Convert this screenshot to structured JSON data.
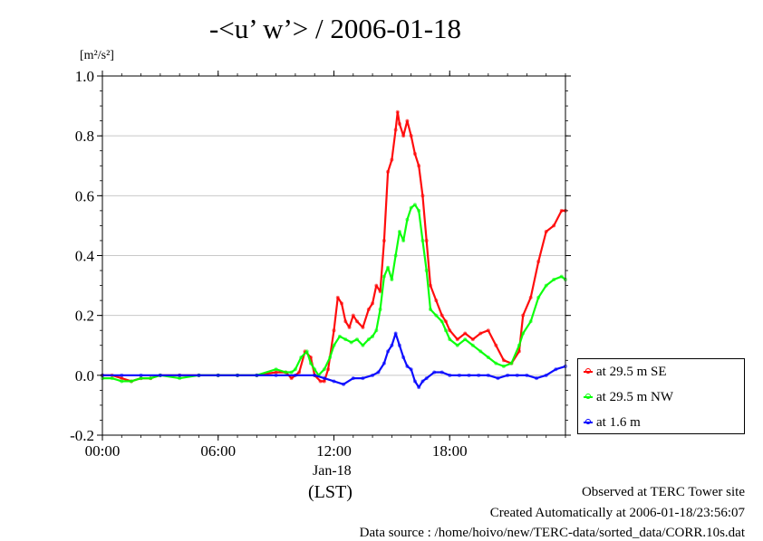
{
  "title": "-<u’ w’> / 2006-01-18",
  "units_label": "[m²/s²]",
  "xlabel_date": "Jan-18",
  "xlabel_tz": "(LST)",
  "footer": {
    "line1": "Observed at TERC Tower site",
    "line2": "Created Automatically at 2006-01-18/23:56:07",
    "line3": "Data source : /home/hoivo/new/TERC-data/sorted_data/CORR.10s.dat"
  },
  "chart_data": {
    "type": "line",
    "title": "-<u’ w’> / 2006-01-18",
    "ylabel": "[m²/s²]",
    "xlabel": "Jan-18 (LST)",
    "xlim": [
      0,
      24
    ],
    "ylim": [
      -0.2,
      1.0
    ],
    "x_ticks": [
      {
        "value": 0,
        "label": "00:00"
      },
      {
        "value": 6,
        "label": "06:00"
      },
      {
        "value": 12,
        "label": "12:00"
      },
      {
        "value": 18,
        "label": "18:00"
      }
    ],
    "y_ticks": [
      {
        "value": -0.2,
        "label": "-0.2"
      },
      {
        "value": 0.0,
        "label": "0.0"
      },
      {
        "value": 0.2,
        "label": "0.2"
      },
      {
        "value": 0.4,
        "label": "0.4"
      },
      {
        "value": 0.6,
        "label": "0.6"
      },
      {
        "value": 0.8,
        "label": "0.8"
      },
      {
        "value": 1.0,
        "label": "1.0"
      }
    ],
    "grid": "horizontal",
    "legend_position": "right-bottom-outside",
    "series": [
      {
        "name": "at 29.5 m SE",
        "color": "#ff0000",
        "points": [
          [
            0,
            0
          ],
          [
            0.5,
            0.0
          ],
          [
            1,
            -0.01
          ],
          [
            1.5,
            -0.02
          ],
          [
            2,
            -0.01
          ],
          [
            2.5,
            -0.01
          ],
          [
            3,
            0
          ],
          [
            4,
            0
          ],
          [
            5,
            0
          ],
          [
            6,
            0
          ],
          [
            7,
            0
          ],
          [
            8,
            0
          ],
          [
            9,
            0.01
          ],
          [
            9.5,
            0.01
          ],
          [
            9.8,
            -0.01
          ],
          [
            10.2,
            0.01
          ],
          [
            10.5,
            0.08
          ],
          [
            10.8,
            0.06
          ],
          [
            11.0,
            0.0
          ],
          [
            11.3,
            -0.02
          ],
          [
            11.5,
            -0.02
          ],
          [
            11.7,
            0.02
          ],
          [
            12.0,
            0.15
          ],
          [
            12.2,
            0.26
          ],
          [
            12.4,
            0.24
          ],
          [
            12.6,
            0.18
          ],
          [
            12.8,
            0.16
          ],
          [
            13.0,
            0.2
          ],
          [
            13.2,
            0.18
          ],
          [
            13.5,
            0.16
          ],
          [
            13.8,
            0.22
          ],
          [
            14.0,
            0.24
          ],
          [
            14.2,
            0.3
          ],
          [
            14.4,
            0.28
          ],
          [
            14.6,
            0.45
          ],
          [
            14.8,
            0.68
          ],
          [
            15.0,
            0.72
          ],
          [
            15.2,
            0.82
          ],
          [
            15.3,
            0.88
          ],
          [
            15.4,
            0.84
          ],
          [
            15.6,
            0.8
          ],
          [
            15.8,
            0.85
          ],
          [
            16.0,
            0.8
          ],
          [
            16.2,
            0.74
          ],
          [
            16.4,
            0.7
          ],
          [
            16.6,
            0.6
          ],
          [
            16.8,
            0.45
          ],
          [
            17.0,
            0.3
          ],
          [
            17.3,
            0.25
          ],
          [
            17.6,
            0.2
          ],
          [
            17.8,
            0.18
          ],
          [
            18.0,
            0.15
          ],
          [
            18.4,
            0.12
          ],
          [
            18.8,
            0.14
          ],
          [
            19.2,
            0.12
          ],
          [
            19.6,
            0.14
          ],
          [
            20.0,
            0.15
          ],
          [
            20.4,
            0.1
          ],
          [
            20.8,
            0.05
          ],
          [
            21.2,
            0.04
          ],
          [
            21.6,
            0.08
          ],
          [
            21.8,
            0.2
          ],
          [
            22.2,
            0.26
          ],
          [
            22.6,
            0.38
          ],
          [
            23.0,
            0.48
          ],
          [
            23.4,
            0.5
          ],
          [
            23.8,
            0.55
          ],
          [
            24.0,
            0.55
          ]
        ]
      },
      {
        "name": "at 29.5 m NW",
        "color": "#00ff00",
        "points": [
          [
            0,
            -0.01
          ],
          [
            0.5,
            -0.01
          ],
          [
            1,
            -0.02
          ],
          [
            1.5,
            -0.02
          ],
          [
            2,
            -0.01
          ],
          [
            2.5,
            -0.01
          ],
          [
            3,
            0
          ],
          [
            4,
            -0.01
          ],
          [
            5,
            0
          ],
          [
            6,
            0
          ],
          [
            7,
            0
          ],
          [
            8,
            0
          ],
          [
            9,
            0.02
          ],
          [
            9.5,
            0.01
          ],
          [
            9.8,
            0.01
          ],
          [
            10.0,
            0.02
          ],
          [
            10.3,
            0.06
          ],
          [
            10.6,
            0.08
          ],
          [
            10.8,
            0.04
          ],
          [
            11.0,
            0.02
          ],
          [
            11.2,
            0.0
          ],
          [
            11.5,
            0.02
          ],
          [
            11.8,
            0.06
          ],
          [
            12.0,
            0.1
          ],
          [
            12.3,
            0.13
          ],
          [
            12.6,
            0.12
          ],
          [
            12.9,
            0.11
          ],
          [
            13.2,
            0.12
          ],
          [
            13.5,
            0.1
          ],
          [
            13.8,
            0.12
          ],
          [
            14.0,
            0.13
          ],
          [
            14.2,
            0.15
          ],
          [
            14.4,
            0.22
          ],
          [
            14.6,
            0.33
          ],
          [
            14.8,
            0.36
          ],
          [
            15.0,
            0.32
          ],
          [
            15.2,
            0.4
          ],
          [
            15.4,
            0.48
          ],
          [
            15.6,
            0.45
          ],
          [
            15.8,
            0.52
          ],
          [
            16.0,
            0.56
          ],
          [
            16.2,
            0.57
          ],
          [
            16.4,
            0.55
          ],
          [
            16.6,
            0.45
          ],
          [
            16.8,
            0.35
          ],
          [
            17.0,
            0.22
          ],
          [
            17.3,
            0.2
          ],
          [
            17.6,
            0.18
          ],
          [
            17.8,
            0.15
          ],
          [
            18.0,
            0.12
          ],
          [
            18.4,
            0.1
          ],
          [
            18.8,
            0.12
          ],
          [
            19.2,
            0.1
          ],
          [
            19.6,
            0.08
          ],
          [
            20.0,
            0.06
          ],
          [
            20.4,
            0.04
          ],
          [
            20.8,
            0.03
          ],
          [
            21.2,
            0.04
          ],
          [
            21.6,
            0.1
          ],
          [
            21.8,
            0.14
          ],
          [
            22.2,
            0.18
          ],
          [
            22.6,
            0.26
          ],
          [
            23.0,
            0.3
          ],
          [
            23.4,
            0.32
          ],
          [
            23.8,
            0.33
          ],
          [
            24.0,
            0.32
          ]
        ]
      },
      {
        "name": "at 1.6 m",
        "color": "#0000ff",
        "points": [
          [
            0,
            0
          ],
          [
            1,
            0
          ],
          [
            2,
            0
          ],
          [
            3,
            0
          ],
          [
            4,
            0
          ],
          [
            5,
            0
          ],
          [
            6,
            0
          ],
          [
            7,
            0
          ],
          [
            8,
            0
          ],
          [
            9,
            0
          ],
          [
            10,
            0
          ],
          [
            11,
            0
          ],
          [
            11.5,
            -0.01
          ],
          [
            12,
            -0.02
          ],
          [
            12.5,
            -0.03
          ],
          [
            13,
            -0.01
          ],
          [
            13.5,
            -0.01
          ],
          [
            14,
            0.0
          ],
          [
            14.3,
            0.01
          ],
          [
            14.6,
            0.04
          ],
          [
            14.8,
            0.08
          ],
          [
            15.0,
            0.1
          ],
          [
            15.2,
            0.14
          ],
          [
            15.4,
            0.1
          ],
          [
            15.6,
            0.06
          ],
          [
            15.8,
            0.03
          ],
          [
            16.0,
            0.02
          ],
          [
            16.2,
            -0.02
          ],
          [
            16.4,
            -0.04
          ],
          [
            16.6,
            -0.02
          ],
          [
            16.8,
            -0.01
          ],
          [
            17.2,
            0.01
          ],
          [
            17.6,
            0.01
          ],
          [
            18.0,
            0.0
          ],
          [
            18.5,
            0.0
          ],
          [
            19,
            0.0
          ],
          [
            19.5,
            0.0
          ],
          [
            20,
            0.0
          ],
          [
            20.5,
            -0.01
          ],
          [
            21,
            0.0
          ],
          [
            21.5,
            0.0
          ],
          [
            22,
            0.0
          ],
          [
            22.5,
            -0.01
          ],
          [
            23,
            0.0
          ],
          [
            23.5,
            0.02
          ],
          [
            24,
            0.03
          ]
        ]
      }
    ]
  }
}
